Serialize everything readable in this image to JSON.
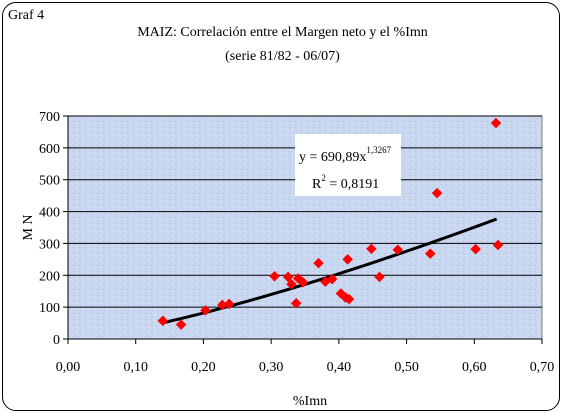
{
  "figure_tag": "Graf 4",
  "chart_data": {
    "type": "scatter",
    "title": "MAIZ: Correlación entre el Margen neto y el %Imn",
    "subtitle": "(serie 81/82 - 06/07)",
    "xlabel": "%Imn",
    "ylabel": "M N",
    "xlim": [
      0,
      0.7
    ],
    "ylim": [
      0,
      700
    ],
    "x_ticks": [
      "0,00",
      "0,10",
      "0,20",
      "0,30",
      "0,40",
      "0,50",
      "0,60",
      "0,70"
    ],
    "y_ticks": [
      "0",
      "100",
      "200",
      "300",
      "400",
      "500",
      "600",
      "700"
    ],
    "grid": "horizontal",
    "marker": "diamond",
    "colors": {
      "points": "#ff0000",
      "trendline": "#000000",
      "plot_background": "#c8d6f0"
    },
    "points": [
      {
        "x": 0.14,
        "y": 57
      },
      {
        "x": 0.167,
        "y": 45
      },
      {
        "x": 0.203,
        "y": 90
      },
      {
        "x": 0.228,
        "y": 107
      },
      {
        "x": 0.238,
        "y": 110
      },
      {
        "x": 0.305,
        "y": 197
      },
      {
        "x": 0.325,
        "y": 195
      },
      {
        "x": 0.33,
        "y": 172
      },
      {
        "x": 0.337,
        "y": 112
      },
      {
        "x": 0.34,
        "y": 190
      },
      {
        "x": 0.347,
        "y": 178
      },
      {
        "x": 0.37,
        "y": 238
      },
      {
        "x": 0.38,
        "y": 180
      },
      {
        "x": 0.39,
        "y": 188
      },
      {
        "x": 0.403,
        "y": 143
      },
      {
        "x": 0.41,
        "y": 130
      },
      {
        "x": 0.413,
        "y": 250
      },
      {
        "x": 0.415,
        "y": 125
      },
      {
        "x": 0.448,
        "y": 283
      },
      {
        "x": 0.46,
        "y": 195
      },
      {
        "x": 0.487,
        "y": 280
      },
      {
        "x": 0.535,
        "y": 268
      },
      {
        "x": 0.545,
        "y": 458
      },
      {
        "x": 0.602,
        "y": 282
      },
      {
        "x": 0.632,
        "y": 678
      },
      {
        "x": 0.635,
        "y": 295
      }
    ],
    "trendline": {
      "type": "power",
      "coefficient": 690.89,
      "exponent": 1.3267,
      "x_range": [
        0.14,
        0.633
      ]
    },
    "equation_label": {
      "prefix": "y = 690,89x",
      "exponent": "1,3267",
      "r2_prefix": "R",
      "r2_power": "2",
      "r2_value": " = 0,8191"
    }
  }
}
